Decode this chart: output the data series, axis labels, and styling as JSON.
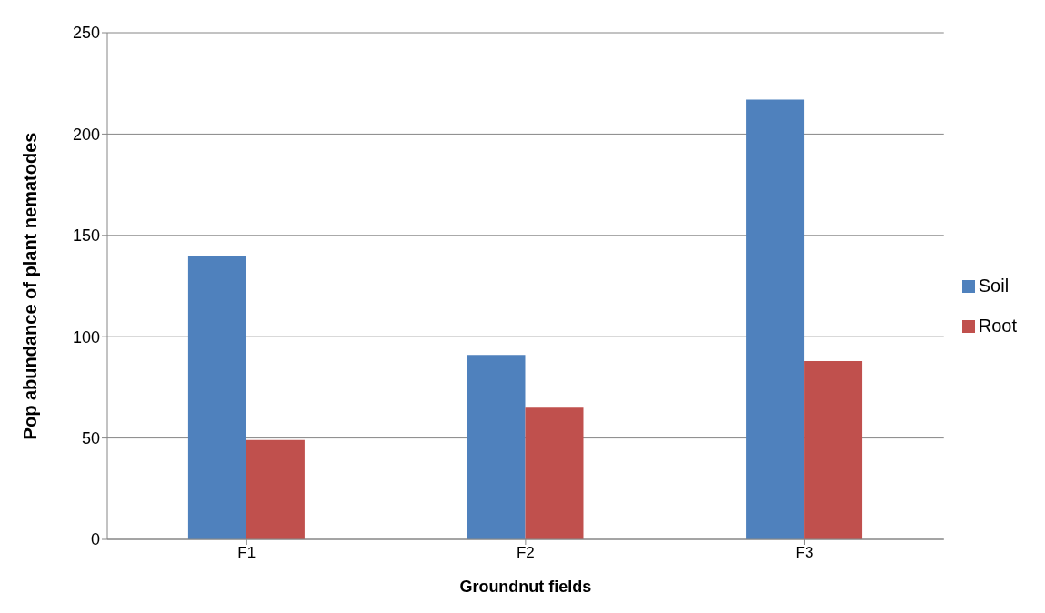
{
  "chart_data": {
    "type": "bar",
    "xlabel": "Groundnut fields",
    "ylabel": "Pop abundance of plant nematodes",
    "categories": [
      "F1",
      "F2",
      "F3"
    ],
    "series": [
      {
        "name": "Soil",
        "color": "#4f81bd",
        "values": [
          140,
          91,
          217
        ]
      },
      {
        "name": "Root",
        "color": "#c0504d",
        "values": [
          49,
          65,
          88
        ]
      }
    ],
    "ylim": [
      0,
      250
    ],
    "yticks": [
      0,
      50,
      100,
      150,
      200,
      250
    ],
    "grid": "y",
    "legend": "right"
  }
}
